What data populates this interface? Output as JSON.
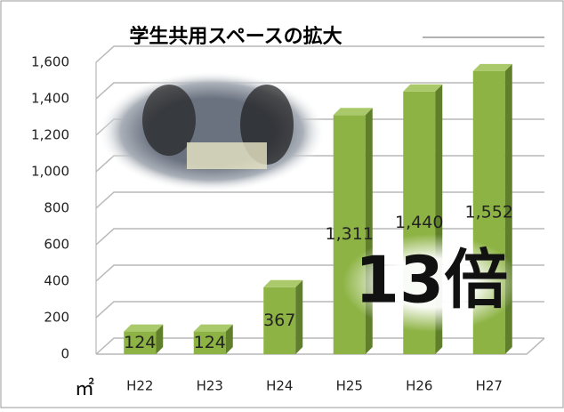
{
  "chart_data": {
    "type": "bar",
    "title": "学生共用スペースの拡大",
    "categories": [
      "H22",
      "H23",
      "H24",
      "H25",
      "H26",
      "H27"
    ],
    "values": [
      124,
      124,
      367,
      1311,
      1440,
      1552
    ],
    "value_labels": [
      "124",
      "124",
      "367",
      "1,311",
      "1,440",
      "1,552"
    ],
    "color": "#8db344",
    "ylim": [
      0,
      1600
    ],
    "yticks": [
      0,
      200,
      400,
      600,
      800,
      {
        "value": 1000,
        "label": "1,000"
      },
      {
        "value": 1200,
        "label": "1,200"
      },
      {
        "value": 1400,
        "label": "1,400"
      },
      {
        "value": 1600,
        "label": "1,600"
      }
    ],
    "grid": true,
    "annotation": "13倍",
    "unit": "㎡"
  }
}
